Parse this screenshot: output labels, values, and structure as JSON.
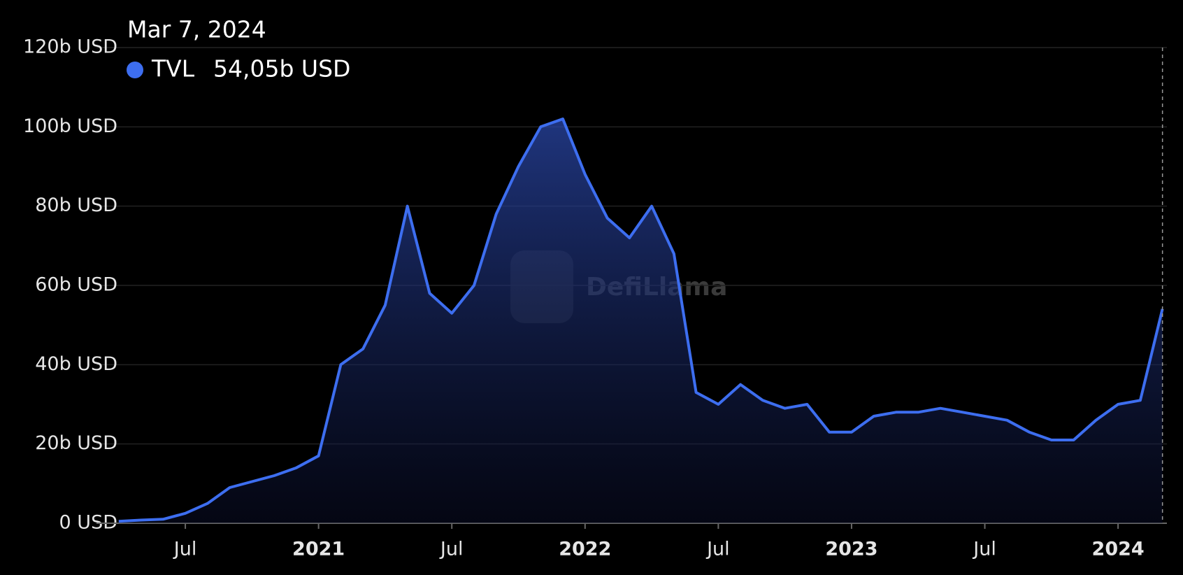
{
  "chart_data": {
    "type": "area",
    "tooltip": {
      "date": "Mar 7, 2024",
      "value_label": "54,05b USD"
    },
    "watermark": "DefiLlama",
    "x": [
      "2020-04",
      "2020-05",
      "2020-06",
      "2020-07",
      "2020-08",
      "2020-09",
      "2020-10",
      "2020-11",
      "2020-12",
      "2021-01",
      "2021-02",
      "2021-03",
      "2021-04",
      "2021-05",
      "2021-06",
      "2021-07",
      "2021-08",
      "2021-09",
      "2021-10",
      "2021-11",
      "2021-12",
      "2022-01",
      "2022-02",
      "2022-03",
      "2022-04",
      "2022-05",
      "2022-06",
      "2022-07",
      "2022-08",
      "2022-09",
      "2022-10",
      "2022-11",
      "2022-12",
      "2023-01",
      "2023-02",
      "2023-03",
      "2023-04",
      "2023-05",
      "2023-06",
      "2023-07",
      "2023-08",
      "2023-09",
      "2023-10",
      "2023-11",
      "2023-12",
      "2024-01",
      "2024-02",
      "2024-03"
    ],
    "series": [
      {
        "name": "TVL",
        "color": "#3d6ef0",
        "values": [
          0.5,
          0.8,
          1,
          2.5,
          5,
          9,
          10.5,
          12,
          14,
          17,
          40,
          44,
          55,
          80,
          58,
          53,
          60,
          78,
          90,
          100,
          102,
          88,
          77,
          72,
          80,
          68,
          33,
          30,
          35,
          31,
          29,
          30,
          23,
          23,
          27,
          28,
          28,
          29,
          28,
          27,
          26,
          23,
          21,
          21,
          26,
          30,
          31,
          54.05
        ]
      }
    ],
    "xlim": [
      "2020-03",
      "2024-03"
    ],
    "xticks": [
      {
        "value": "2020-07",
        "label": "Jul"
      },
      {
        "value": "2021-01",
        "label": "2021"
      },
      {
        "value": "2021-07",
        "label": "Jul"
      },
      {
        "value": "2022-01",
        "label": "2022"
      },
      {
        "value": "2022-07",
        "label": "Jul"
      },
      {
        "value": "2023-01",
        "label": "2023"
      },
      {
        "value": "2023-07",
        "label": "Jul"
      },
      {
        "value": "2024-01",
        "label": "2024"
      }
    ],
    "ylim": [
      0,
      120
    ],
    "yticks": [
      {
        "value": 0,
        "label": "0 USD"
      },
      {
        "value": 20,
        "label": "20b USD"
      },
      {
        "value": 40,
        "label": "40b USD"
      },
      {
        "value": 60,
        "label": "60b USD"
      },
      {
        "value": 80,
        "label": "80b USD"
      },
      {
        "value": 100,
        "label": "100b USD"
      },
      {
        "value": 120,
        "label": "120b USD"
      }
    ],
    "grid": true
  }
}
